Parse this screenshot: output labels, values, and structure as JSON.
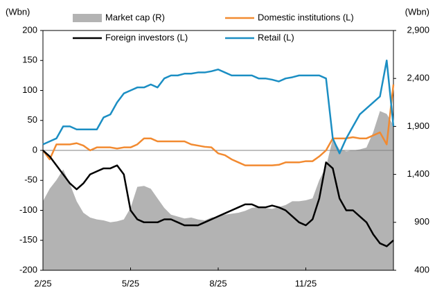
{
  "chart_data": {
    "type": "line",
    "y_label": "(Wbn)",
    "y2_label": "(Wbn)",
    "categories": [
      "2/25",
      null,
      null,
      null,
      null,
      null,
      null,
      null,
      null,
      null,
      null,
      null,
      null,
      "5/25",
      null,
      null,
      null,
      null,
      null,
      null,
      null,
      null,
      null,
      null,
      null,
      null,
      "8/25",
      null,
      null,
      null,
      null,
      null,
      null,
      null,
      null,
      null,
      null,
      null,
      null,
      "11/25",
      null,
      null,
      null,
      null,
      null,
      null,
      null,
      null,
      null,
      null,
      null,
      null,
      null
    ],
    "ylim": [
      -200,
      200
    ],
    "yticks": [
      200,
      150,
      100,
      50,
      0,
      -50,
      -100,
      -150,
      -200
    ],
    "y2lim": [
      400,
      2900
    ],
    "y2ticks": [
      {
        "value": 2900,
        "label": "2,900"
      },
      {
        "value": 2400,
        "label": "2,400"
      },
      {
        "value": 1900,
        "label": "1,900"
      },
      {
        "value": 1400,
        "label": "1,400"
      },
      900,
      400
    ],
    "series": [
      {
        "name": "Market cap  (R)",
        "color": "#b3b3b3",
        "axis": "y2",
        "kind": "area",
        "values": [
          1120,
          1250,
          1340,
          1450,
          1300,
          1120,
          1000,
          950,
          930,
          920,
          900,
          910,
          930,
          1050,
          1270,
          1280,
          1250,
          1150,
          1050,
          980,
          960,
          940,
          950,
          930,
          920,
          950,
          960,
          980,
          990,
          1000,
          1020,
          1050,
          1060,
          1050,
          1040,
          1060,
          1080,
          1120,
          1120,
          1130,
          1150,
          1340,
          1480,
          1770,
          1660,
          1640,
          1650,
          1660,
          1680,
          1840,
          2060,
          2030,
          1910
        ]
      },
      {
        "name": "Domestic institutions (L)",
        "color": "#f28a30",
        "values": [
          0,
          -15,
          10,
          10,
          10,
          12,
          8,
          0,
          5,
          5,
          5,
          3,
          5,
          5,
          10,
          20,
          20,
          15,
          15,
          15,
          15,
          15,
          10,
          8,
          6,
          5,
          -5,
          -8,
          -15,
          -20,
          -25,
          -25,
          -25,
          -25,
          -25,
          -24,
          -20,
          -20,
          -20,
          -18,
          -18,
          -10,
          0,
          20,
          20,
          20,
          22,
          20,
          20,
          25,
          30,
          10,
          110
        ]
      },
      {
        "name": "Foreign investors (L)",
        "color": "#000000",
        "values": [
          0,
          -10,
          -25,
          -40,
          -55,
          -65,
          -55,
          -40,
          -35,
          -30,
          -30,
          -25,
          -40,
          -100,
          -115,
          -120,
          -120,
          -120,
          -115,
          -115,
          -120,
          -125,
          -125,
          -125,
          -120,
          -115,
          -110,
          -105,
          -100,
          -95,
          -90,
          -90,
          -95,
          -95,
          -92,
          -95,
          -100,
          -110,
          -120,
          -125,
          -115,
          -80,
          -20,
          -30,
          -80,
          -100,
          -100,
          -110,
          -120,
          -140,
          -155,
          -160,
          -150
        ]
      },
      {
        "name": "Retail (L)",
        "color": "#1b8ec3",
        "values": [
          10,
          15,
          20,
          40,
          40,
          35,
          35,
          35,
          35,
          55,
          60,
          80,
          95,
          100,
          105,
          105,
          110,
          105,
          120,
          125,
          125,
          128,
          128,
          130,
          130,
          132,
          135,
          130,
          125,
          125,
          125,
          125,
          120,
          120,
          118,
          115,
          120,
          122,
          125,
          125,
          125,
          125,
          120,
          20,
          -5,
          20,
          40,
          60,
          70,
          80,
          90,
          150,
          40
        ]
      }
    ]
  }
}
